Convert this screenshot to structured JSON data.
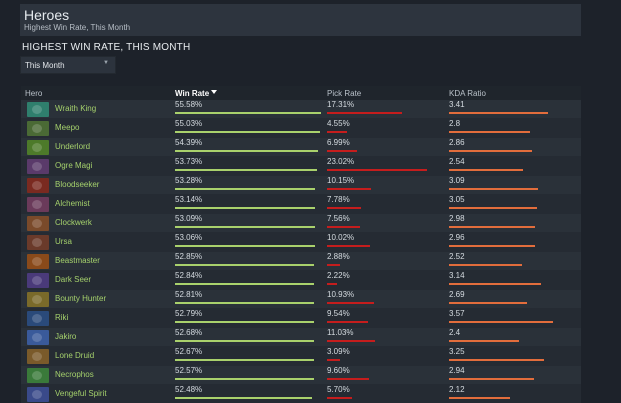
{
  "header": {
    "title": "Heroes",
    "subtitle": "Highest Win Rate, This Month"
  },
  "section_title": "HIGHEST WIN RATE, THIS MONTH",
  "filter": {
    "selected": "This Month"
  },
  "columns": {
    "hero": "Hero",
    "win_rate": "Win Rate",
    "pick_rate": "Pick Rate",
    "kda": "KDA Ratio"
  },
  "colors": {
    "win_bar": "#a9d16c",
    "pick_bar": "#c51d1d",
    "kda_bar": "#e26d3c",
    "hero_link": "#a5d16c"
  },
  "rows": [
    {
      "hero": "Wraith King",
      "win": "55.58%",
      "pick": "17.31%",
      "kda": "3.41",
      "win_frac": 1.0,
      "pick_frac": 0.75,
      "kda_frac": 0.95,
      "portrait_color": "#2f7f6d"
    },
    {
      "hero": "Meepo",
      "win": "55.03%",
      "pick": "4.55%",
      "kda": "2.8",
      "win_frac": 0.99,
      "pick_frac": 0.2,
      "kda_frac": 0.78,
      "portrait_color": "#4a6a35"
    },
    {
      "hero": "Underlord",
      "win": "54.39%",
      "pick": "6.99%",
      "kda": "2.86",
      "win_frac": 0.98,
      "pick_frac": 0.3,
      "kda_frac": 0.8,
      "portrait_color": "#4d7a2a"
    },
    {
      "hero": "Ogre Magi",
      "win": "53.73%",
      "pick": "23.02%",
      "kda": "2.54",
      "win_frac": 0.97,
      "pick_frac": 1.0,
      "kda_frac": 0.71,
      "portrait_color": "#5a3a6a"
    },
    {
      "hero": "Bloodseeker",
      "win": "53.28%",
      "pick": "10.15%",
      "kda": "3.09",
      "win_frac": 0.96,
      "pick_frac": 0.44,
      "kda_frac": 0.86,
      "portrait_color": "#7a2a20"
    },
    {
      "hero": "Alchemist",
      "win": "53.14%",
      "pick": "7.78%",
      "kda": "3.05",
      "win_frac": 0.96,
      "pick_frac": 0.34,
      "kda_frac": 0.85,
      "portrait_color": "#6a3a5a"
    },
    {
      "hero": "Clockwerk",
      "win": "53.09%",
      "pick": "7.56%",
      "kda": "2.98",
      "win_frac": 0.96,
      "pick_frac": 0.33,
      "kda_frac": 0.83,
      "portrait_color": "#7a4a2a"
    },
    {
      "hero": "Ursa",
      "win": "53.06%",
      "pick": "10.02%",
      "kda": "2.96",
      "win_frac": 0.96,
      "pick_frac": 0.43,
      "kda_frac": 0.83,
      "portrait_color": "#6a3a2a"
    },
    {
      "hero": "Beastmaster",
      "win": "52.85%",
      "pick": "2.88%",
      "kda": "2.52",
      "win_frac": 0.95,
      "pick_frac": 0.13,
      "kda_frac": 0.7,
      "portrait_color": "#8a4a1a"
    },
    {
      "hero": "Dark Seer",
      "win": "52.84%",
      "pick": "2.22%",
      "kda": "3.14",
      "win_frac": 0.95,
      "pick_frac": 0.1,
      "kda_frac": 0.88,
      "portrait_color": "#4a3a7a"
    },
    {
      "hero": "Bounty Hunter",
      "win": "52.81%",
      "pick": "10.93%",
      "kda": "2.69",
      "win_frac": 0.95,
      "pick_frac": 0.47,
      "kda_frac": 0.75,
      "portrait_color": "#7a6a2a"
    },
    {
      "hero": "Riki",
      "win": "52.79%",
      "pick": "9.54%",
      "kda": "3.57",
      "win_frac": 0.95,
      "pick_frac": 0.41,
      "kda_frac": 1.0,
      "portrait_color": "#2a4a7a"
    },
    {
      "hero": "Jakiro",
      "win": "52.68%",
      "pick": "11.03%",
      "kda": "2.4",
      "win_frac": 0.95,
      "pick_frac": 0.48,
      "kda_frac": 0.67,
      "portrait_color": "#3a5a9a"
    },
    {
      "hero": "Lone Druid",
      "win": "52.67%",
      "pick": "3.09%",
      "kda": "3.25",
      "win_frac": 0.95,
      "pick_frac": 0.13,
      "kda_frac": 0.91,
      "portrait_color": "#7a5a2a"
    },
    {
      "hero": "Necrophos",
      "win": "52.57%",
      "pick": "9.60%",
      "kda": "2.94",
      "win_frac": 0.95,
      "pick_frac": 0.42,
      "kda_frac": 0.82,
      "portrait_color": "#3a7a3a"
    },
    {
      "hero": "Vengeful Spirit",
      "win": "52.48%",
      "pick": "5.70%",
      "kda": "2.12",
      "win_frac": 0.94,
      "pick_frac": 0.25,
      "kda_frac": 0.59,
      "portrait_color": "#3a4a8a"
    }
  ]
}
